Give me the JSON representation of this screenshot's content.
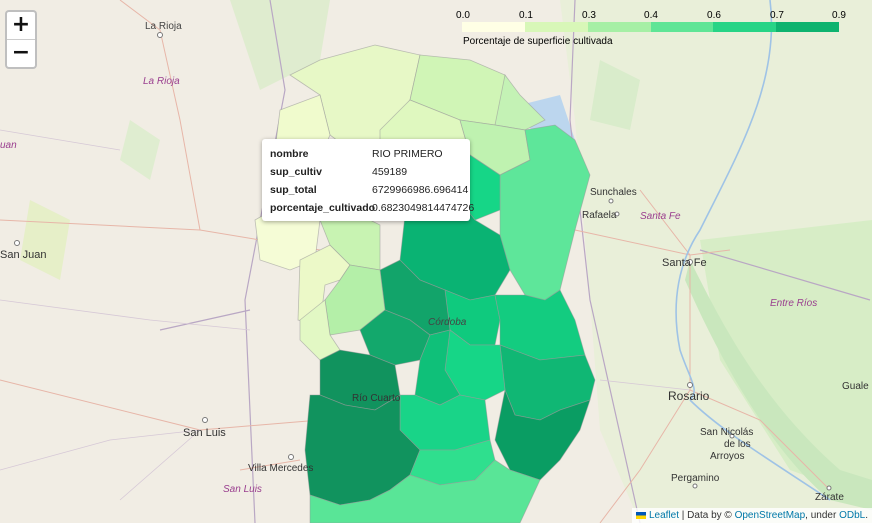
{
  "map": {
    "places": [
      {
        "name": "La Rioja",
        "kind": "city"
      },
      {
        "name": "La Rioja",
        "kind": "province"
      },
      {
        "name": "San Juan",
        "kind": "city"
      },
      {
        "name": "uan",
        "kind": "province"
      },
      {
        "name": "San Luis",
        "kind": "city"
      },
      {
        "name": "San Luis",
        "kind": "province"
      },
      {
        "name": "Villa Mercedes",
        "kind": "city"
      },
      {
        "name": "Río Cuarto",
        "kind": "city"
      },
      {
        "name": "Córdoba",
        "kind": "province"
      },
      {
        "name": "Sunchales",
        "kind": "city"
      },
      {
        "name": "Rafaela",
        "kind": "city"
      },
      {
        "name": "Santa Fe",
        "kind": "province"
      },
      {
        "name": "Santa Fe",
        "kind": "city"
      },
      {
        "name": "Entre Ríos",
        "kind": "province"
      },
      {
        "name": "Rosario",
        "kind": "city"
      },
      {
        "name": "San Nicolás",
        "kind": "city"
      },
      {
        "name": "de los",
        "kind": "city"
      },
      {
        "name": "Arroyos",
        "kind": "city"
      },
      {
        "name": "Pergamino",
        "kind": "city"
      },
      {
        "name": "Zárate",
        "kind": "city"
      },
      {
        "name": "Guale",
        "kind": "city"
      }
    ],
    "choropleth_colors": [
      "#ffffe5",
      "#e6f9c8",
      "#c4f2b5",
      "#9deca6",
      "#5ee69a",
      "#16d687",
      "#0ab373",
      "#11935e"
    ]
  },
  "zoom": {
    "in_label": "+",
    "out_label": "−"
  },
  "legend": {
    "ticks": [
      "0.0",
      "0.1",
      "0.3",
      "0.4",
      "0.6",
      "0.7",
      "0.9"
    ],
    "caption": "Porcentaje de superficie cultivada",
    "colors": [
      "#ffffe5",
      "#d8f7b8",
      "#a6efa5",
      "#5fe596",
      "#27d486",
      "#0eb36f"
    ]
  },
  "tooltip": {
    "rows": [
      {
        "key": "nombre",
        "value": "RIO PRIMERO"
      },
      {
        "key": "sup_cultiv",
        "value": "459189"
      },
      {
        "key": "sup_total",
        "value": "6729966986.696414"
      },
      {
        "key": "porcentaje_cultivado",
        "value": "0.6823049814474726"
      }
    ]
  },
  "attribution": {
    "leaflet": "Leaflet",
    "sep": " | Data by © ",
    "osm": "OpenStreetMap",
    "mid": ", under ",
    "odbl": "ODbL",
    "end": "."
  }
}
